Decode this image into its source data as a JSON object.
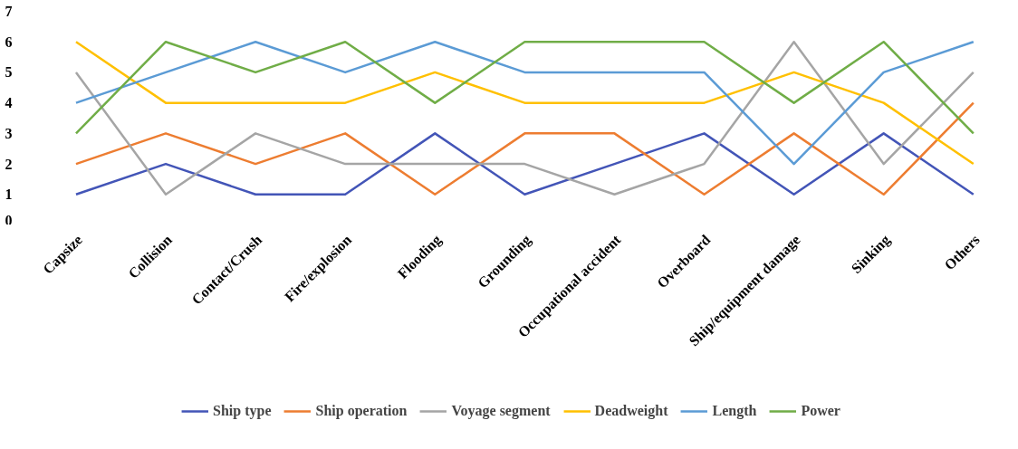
{
  "chart_data": {
    "type": "line",
    "categories": [
      "Capsize",
      "Collision",
      "Contact/Crush",
      "Fire/explosion",
      "Flooding",
      "Grounding",
      "Occupational accident",
      "Overboard",
      "Ship/equipment damage",
      "Sinking",
      "Others"
    ],
    "series": [
      {
        "name": "Ship type",
        "color": "#4355b7",
        "values": [
          1,
          2,
          1,
          1,
          3,
          1,
          2,
          3,
          1,
          3,
          1
        ]
      },
      {
        "name": "Ship operation",
        "color": "#ed7d31",
        "values": [
          2,
          3,
          2,
          3,
          1,
          3,
          3,
          1,
          3,
          1,
          4
        ]
      },
      {
        "name": "Voyage segment",
        "color": "#a5a5a5",
        "values": [
          5,
          1,
          3,
          2,
          2,
          2,
          1,
          2,
          6,
          2,
          5
        ]
      },
      {
        "name": "Deadweight",
        "color": "#ffc000",
        "values": [
          6,
          4,
          4,
          4,
          5,
          4,
          4,
          4,
          5,
          4,
          2
        ]
      },
      {
        "name": "Length",
        "color": "#5b9bd5",
        "values": [
          4,
          5,
          6,
          5,
          6,
          5,
          5,
          5,
          2,
          5,
          6
        ]
      },
      {
        "name": "Power",
        "color": "#70ad47",
        "values": [
          3,
          6,
          5,
          6,
          4,
          6,
          6,
          6,
          4,
          6,
          3
        ]
      }
    ],
    "ylim": [
      0,
      7
    ],
    "yticks": [
      0,
      1,
      2,
      3,
      4,
      5,
      6,
      7
    ],
    "grid": false,
    "legend": "bottom",
    "marker": "none",
    "line_style": "solid"
  }
}
